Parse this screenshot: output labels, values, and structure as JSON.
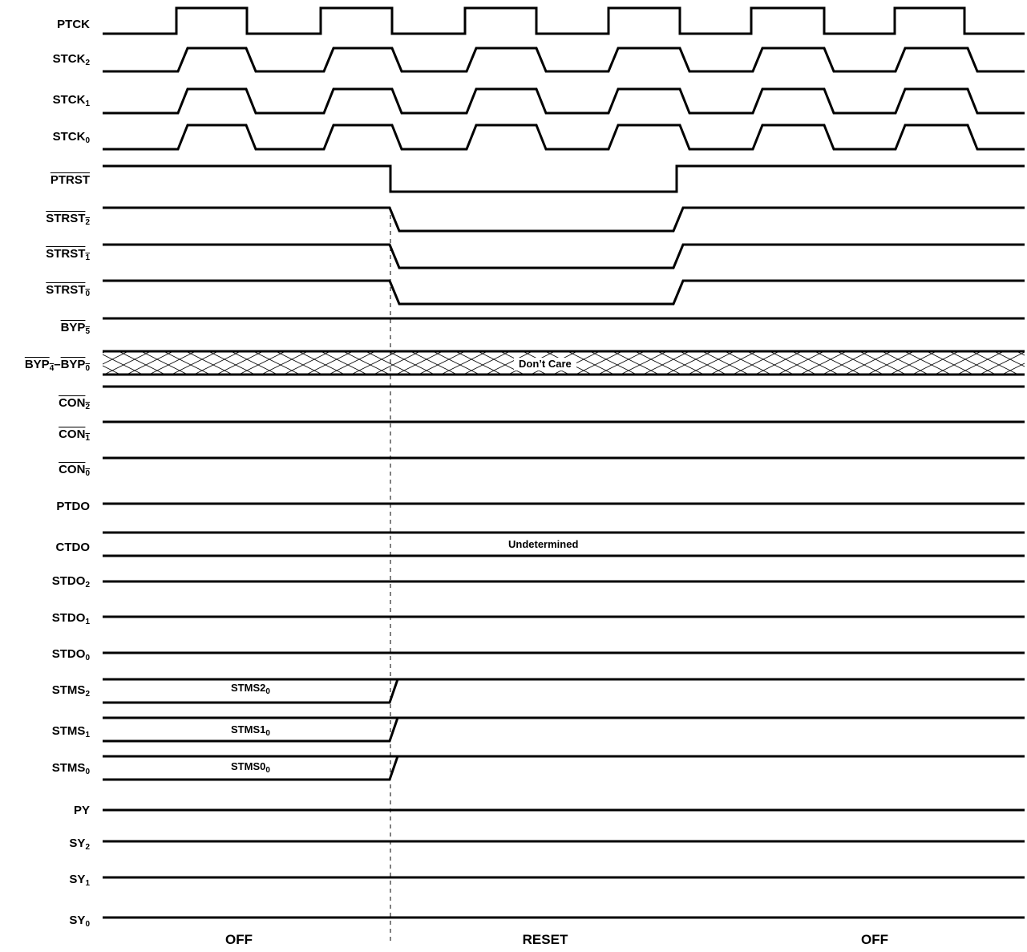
{
  "signals": {
    "ptck": {
      "name": "PTCK",
      "sub": ""
    },
    "stck2": {
      "name": "STCK",
      "sub": "2"
    },
    "stck1": {
      "name": "STCK",
      "sub": "1"
    },
    "stck0": {
      "name": "STCK",
      "sub": "0"
    },
    "ptrst": {
      "name": "PTRST",
      "sub": ""
    },
    "strst2": {
      "name": "STRST",
      "sub": "2"
    },
    "strst1": {
      "name": "STRST",
      "sub": "1"
    },
    "strst0": {
      "name": "STRST",
      "sub": "0"
    },
    "byp5": {
      "name": "BYP",
      "sub": "5"
    },
    "byp4_0": {
      "name_a": "BYP",
      "sub_a": "4",
      "dash": "–",
      "name_b": "BYP",
      "sub_b": "0"
    },
    "con2": {
      "name": "CON",
      "sub": "2"
    },
    "con1": {
      "name": "CON",
      "sub": "1"
    },
    "con0": {
      "name": "CON",
      "sub": "0"
    },
    "ptdo": {
      "name": "PTDO",
      "sub": ""
    },
    "ctdo": {
      "name": "CTDO",
      "sub": ""
    },
    "stdo2": {
      "name": "STDO",
      "sub": "2"
    },
    "stdo1": {
      "name": "STDO",
      "sub": "1"
    },
    "stdo0": {
      "name": "STDO",
      "sub": "0"
    },
    "stms2": {
      "name": "STMS",
      "sub": "2"
    },
    "stms1": {
      "name": "STMS",
      "sub": "1"
    },
    "stms0": {
      "name": "STMS",
      "sub": "0"
    },
    "py": {
      "name": "PY",
      "sub": ""
    },
    "sy2": {
      "name": "SY",
      "sub": "2"
    },
    "sy1": {
      "name": "SY",
      "sub": "1"
    },
    "sy0": {
      "name": "SY",
      "sub": "0"
    }
  },
  "annotations": {
    "dont_care": "Don’t Care",
    "undetermined": "Undetermined",
    "stms2_value": {
      "text": "STMS2",
      "sub": "0"
    },
    "stms1_value": {
      "text": "STMS1",
      "sub": "0"
    },
    "stms0_value": {
      "text": "STMS0",
      "sub": "0"
    }
  },
  "phases": {
    "left": "OFF",
    "middle": "RESET",
    "right": "OFF"
  },
  "colors": {
    "line": "#000000",
    "background": "#ffffff"
  }
}
